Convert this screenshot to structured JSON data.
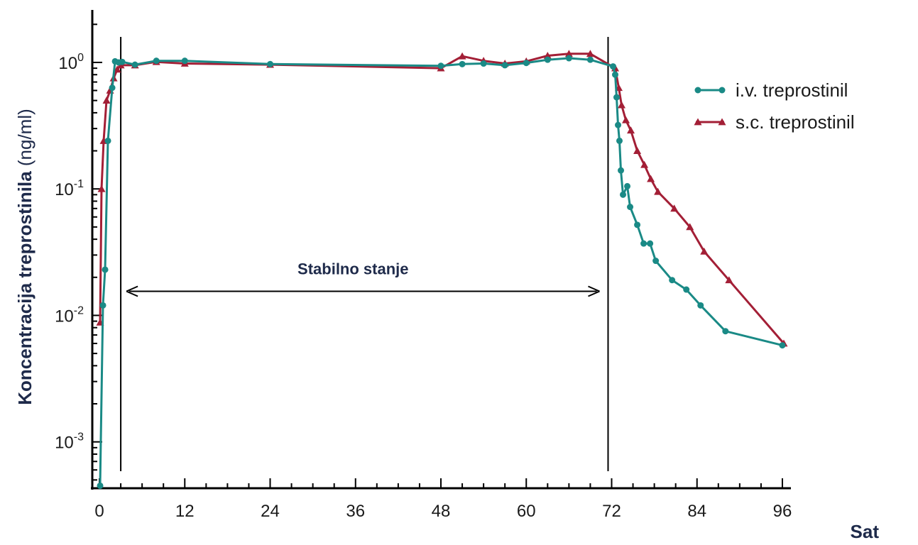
{
  "chart_data": {
    "type": "line",
    "title": "",
    "xlabel": "Sat",
    "ylabel_bold": "Koncentracija treprostinila",
    "ylabel_unit": "(ng/ml)",
    "x_ticks": [
      "0",
      "12",
      "24",
      "36",
      "48",
      "60",
      "72",
      "84",
      "96"
    ],
    "x_tick_values": [
      0,
      12,
      24,
      36,
      48,
      60,
      72,
      84,
      96
    ],
    "xlim": [
      -1,
      97
    ],
    "y_scale": "log",
    "y_tick_base": "10",
    "y_ticks": [
      {
        "value": 1,
        "exp": "0"
      },
      {
        "value": 0.1,
        "exp": "-1"
      },
      {
        "value": 0.01,
        "exp": "-2"
      },
      {
        "value": 0.001,
        "exp": "-3"
      }
    ],
    "ylim": [
      0.00043,
      2.6
    ],
    "grid": false,
    "legend_position": "top-right",
    "annotation": {
      "text": "Stabilno stanje",
      "x_start": 3,
      "x_end": 71.5,
      "y": 0.0155
    },
    "reference_lines_x": [
      3,
      71.5
    ],
    "series": [
      {
        "name": "i.v. treprostinil",
        "color": "#1a8a86",
        "marker": "circle",
        "points": [
          [
            0.1,
            0.00045
          ],
          [
            0.5,
            0.012
          ],
          [
            0.8,
            0.023
          ],
          [
            1.2,
            0.24
          ],
          [
            1.8,
            0.63
          ],
          [
            2.2,
            1.02
          ],
          [
            2.7,
            1.0
          ],
          [
            3.2,
            1.01
          ],
          [
            5,
            0.96
          ],
          [
            8,
            1.03
          ],
          [
            12,
            1.03
          ],
          [
            24,
            0.97
          ],
          [
            48,
            0.94
          ],
          [
            51,
            0.97
          ],
          [
            54,
            0.98
          ],
          [
            57,
            0.95
          ],
          [
            60,
            0.99
          ],
          [
            63,
            1.05
          ],
          [
            66,
            1.08
          ],
          [
            69,
            1.05
          ],
          [
            72.2,
            0.93
          ],
          [
            72.5,
            0.8
          ],
          [
            72.7,
            0.53
          ],
          [
            72.9,
            0.32
          ],
          [
            73.1,
            0.24
          ],
          [
            73.3,
            0.14
          ],
          [
            73.6,
            0.09
          ],
          [
            74.2,
            0.105
          ],
          [
            74.6,
            0.072
          ],
          [
            75.6,
            0.052
          ],
          [
            76.5,
            0.037
          ],
          [
            77.4,
            0.037
          ],
          [
            78.2,
            0.027
          ],
          [
            80.5,
            0.019
          ],
          [
            82.5,
            0.016
          ],
          [
            84.5,
            0.012
          ],
          [
            88,
            0.0075
          ],
          [
            96,
            0.0058
          ]
        ]
      },
      {
        "name": "s.c. treprostinil",
        "color": "#a31f36",
        "marker": "triangle",
        "points": [
          [
            0.1,
            0.0088
          ],
          [
            0.3,
            0.1
          ],
          [
            0.6,
            0.24
          ],
          [
            1.0,
            0.5
          ],
          [
            1.5,
            0.6
          ],
          [
            2.0,
            0.75
          ],
          [
            2.5,
            0.88
          ],
          [
            3.0,
            0.95
          ],
          [
            5,
            0.95
          ],
          [
            8,
            1.01
          ],
          [
            12,
            0.98
          ],
          [
            24,
            0.96
          ],
          [
            48,
            0.9
          ],
          [
            51,
            1.12
          ],
          [
            54,
            1.03
          ],
          [
            57,
            0.98
          ],
          [
            60,
            1.02
          ],
          [
            63,
            1.13
          ],
          [
            66,
            1.17
          ],
          [
            69,
            1.17
          ],
          [
            72.5,
            0.9
          ],
          [
            73,
            0.63
          ],
          [
            73.4,
            0.46
          ],
          [
            74,
            0.35
          ],
          [
            74.7,
            0.29
          ],
          [
            75.6,
            0.2
          ],
          [
            76.6,
            0.155
          ],
          [
            77.5,
            0.12
          ],
          [
            78.5,
            0.095
          ],
          [
            80.8,
            0.07
          ],
          [
            83,
            0.05
          ],
          [
            85,
            0.032
          ],
          [
            88.5,
            0.019
          ],
          [
            96.2,
            0.006
          ]
        ]
      }
    ]
  }
}
